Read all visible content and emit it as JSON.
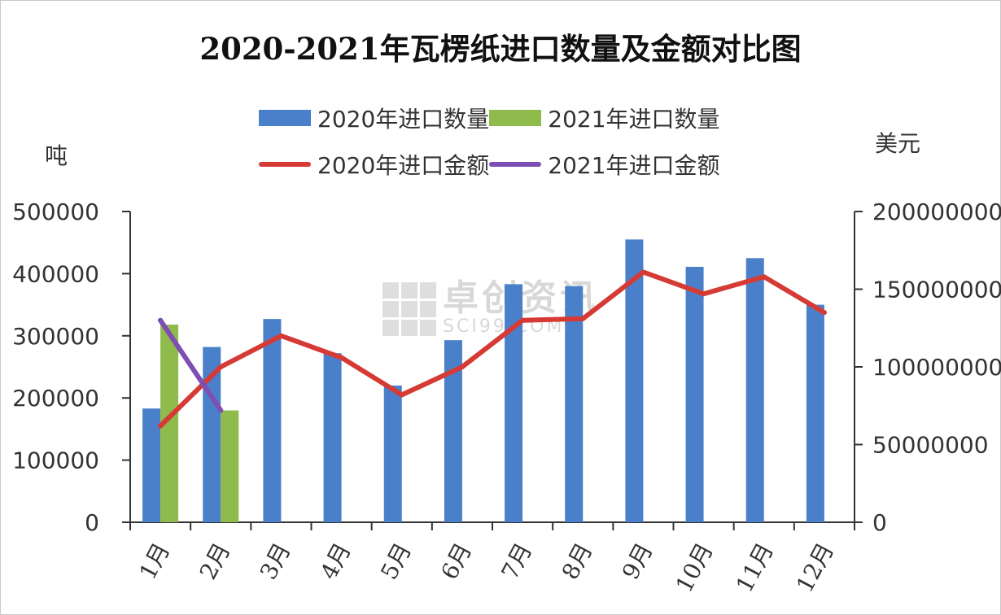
{
  "chart_data": {
    "type": "bar+line",
    "title": "2020-2021年瓦楞纸进口数量及金额对比图",
    "left_axis_unit": "吨",
    "right_axis_unit": "美元",
    "categories": [
      "1月",
      "2月",
      "3月",
      "4月",
      "5月",
      "6月",
      "7月",
      "8月",
      "9月",
      "10月",
      "11月",
      "12月"
    ],
    "left_ylim": [
      0,
      500000
    ],
    "left_ticks": [
      "0",
      "100000",
      "200000",
      "300000",
      "400000",
      "500000"
    ],
    "right_ylim": [
      0,
      200000000
    ],
    "right_ticks": [
      "0",
      "50000000",
      "100000000",
      "150000000",
      "200000000"
    ],
    "bar_series": [
      {
        "name": "2020年进口数量",
        "color": "#4a7fca",
        "values": [
          183000,
          282000,
          327000,
          272000,
          220000,
          293000,
          383000,
          380000,
          455000,
          411000,
          425000,
          350000
        ]
      },
      {
        "name": "2021年进口数量",
        "color": "#8fba4c",
        "values": [
          318000,
          180000,
          null,
          null,
          null,
          null,
          null,
          null,
          null,
          null,
          null,
          null
        ]
      }
    ],
    "line_series": [
      {
        "name": "2020年进口金额",
        "color": "#d63a35",
        "values": [
          62000000,
          100000000,
          120000000,
          106000000,
          82000000,
          100000000,
          130000000,
          131000000,
          161000000,
          147000000,
          158000000,
          135000000
        ]
      },
      {
        "name": "2021年进口金额",
        "color": "#7d4fb3",
        "values": [
          130000000,
          72000000,
          null,
          null,
          null,
          null,
          null,
          null,
          null,
          null,
          null,
          null
        ]
      }
    ],
    "grid": false,
    "legend_position": "top"
  },
  "watermark": {
    "cn": "卓创资讯",
    "en": "SCI99.COM"
  }
}
